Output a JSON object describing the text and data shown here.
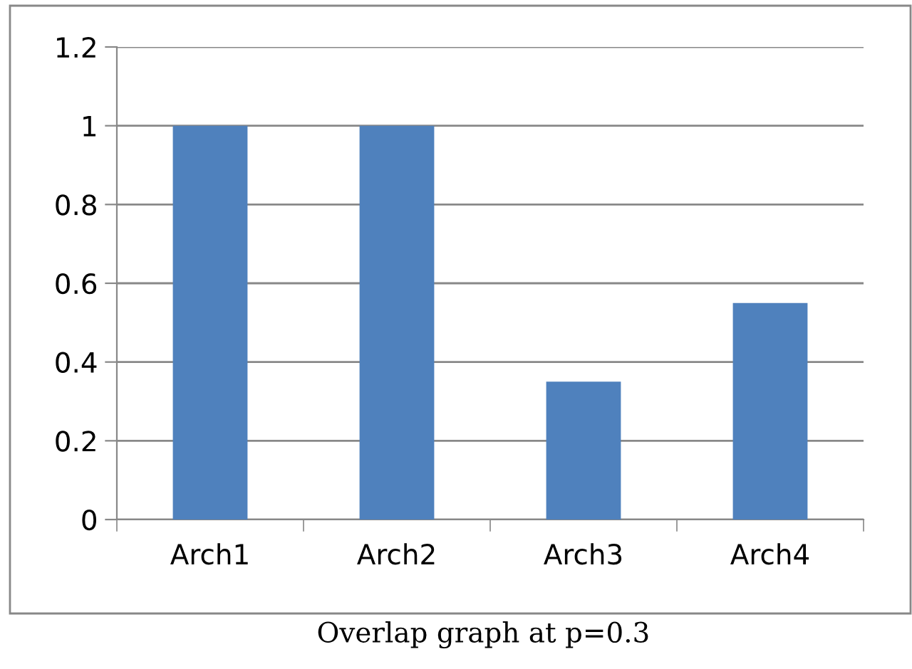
{
  "chart_data": {
    "type": "bar",
    "categories": [
      "Arch1",
      "Arch2",
      "Arch3",
      "Arch4"
    ],
    "values": [
      1,
      1,
      0.35,
      0.55
    ],
    "color": "#4f81bd",
    "ylim": [
      0,
      1.2
    ],
    "yticks": [
      0,
      0.2,
      0.4,
      0.6,
      0.8,
      1,
      1.2
    ],
    "grid": "y",
    "legend": false,
    "annotations": [
      "Overlap graph at p=0.3"
    ]
  }
}
